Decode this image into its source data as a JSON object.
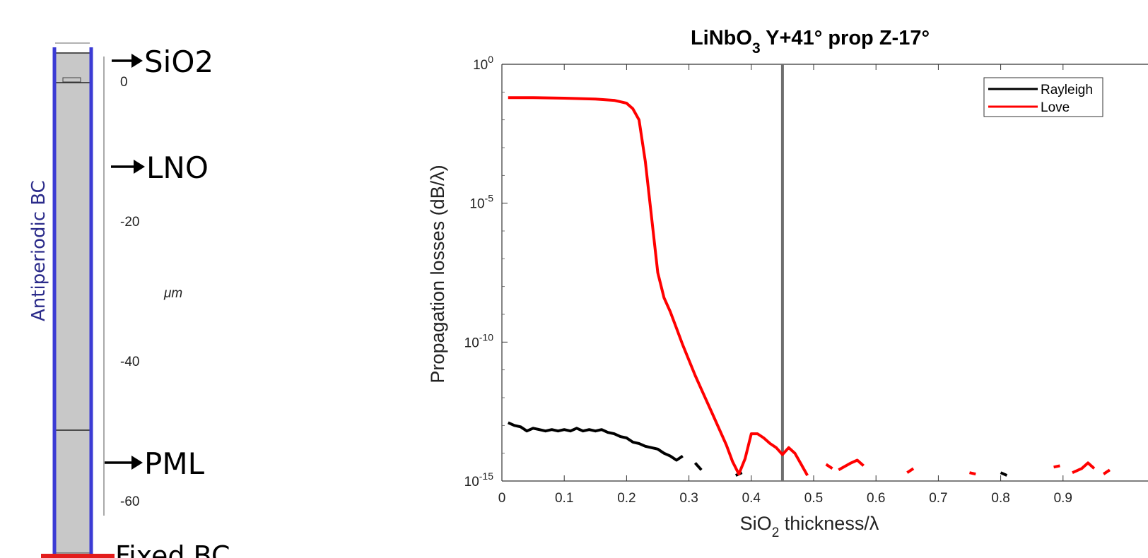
{
  "diagram": {
    "side_label": "Antiperiodic BC",
    "unit": "μm",
    "ticks": [
      "0",
      "-20",
      "-40",
      "-60"
    ],
    "layer_labels": {
      "sio2": "SiO2",
      "lno": "LNO",
      "pml": "PML",
      "fixed_bc": "Fixed BC"
    },
    "colors": {
      "boundary_blue": "#3b3bd4",
      "fixed_red": "#e31c1c",
      "fill_gray": "#c8c8c8"
    }
  },
  "chart_data": {
    "type": "line",
    "title_main": "LiNbO",
    "title_sub": "3",
    "title_rest": " Y+41° prop Z-17°",
    "xlabel_main": "SiO",
    "xlabel_sub": "2",
    "xlabel_rest": " thickness/λ",
    "ylabel": "Propagation losses (dB/λ)",
    "x_ticks": [
      "0",
      "0.1",
      "0.2",
      "0.3",
      "0.4",
      "0.5",
      "0.6",
      "0.7",
      "0.8",
      "0.9"
    ],
    "y_ticks": [
      {
        "base": "10",
        "exp": "0"
      },
      {
        "base": "10",
        "exp": "-5"
      },
      {
        "base": "10",
        "exp": "-10"
      },
      {
        "base": "10",
        "exp": "-15"
      }
    ],
    "xlim": [
      0,
      1.0
    ],
    "ylim_log10": [
      -15,
      0
    ],
    "yscale": "log",
    "vline_x": 0.45,
    "legend_position": "top-right",
    "legend": [
      {
        "name": "Rayleigh",
        "color": "#000000"
      },
      {
        "name": "Love",
        "color": "#ff0000"
      }
    ],
    "series": [
      {
        "name": "Rayleigh",
        "color": "#000000",
        "log10_segments": [
          [
            [
              0.01,
              -12.9
            ],
            [
              0.02,
              -13.0
            ],
            [
              0.03,
              -13.05
            ],
            [
              0.04,
              -13.2
            ],
            [
              0.05,
              -13.1
            ],
            [
              0.06,
              -13.15
            ],
            [
              0.07,
              -13.2
            ],
            [
              0.08,
              -13.15
            ],
            [
              0.09,
              -13.2
            ],
            [
              0.1,
              -13.15
            ],
            [
              0.11,
              -13.2
            ],
            [
              0.12,
              -13.1
            ],
            [
              0.13,
              -13.2
            ],
            [
              0.14,
              -13.15
            ],
            [
              0.15,
              -13.2
            ],
            [
              0.16,
              -13.15
            ],
            [
              0.17,
              -13.25
            ],
            [
              0.18,
              -13.3
            ],
            [
              0.19,
              -13.4
            ],
            [
              0.2,
              -13.45
            ],
            [
              0.21,
              -13.6
            ],
            [
              0.22,
              -13.65
            ],
            [
              0.23,
              -13.75
            ],
            [
              0.24,
              -13.8
            ],
            [
              0.25,
              -13.85
            ],
            [
              0.26,
              -14.0
            ],
            [
              0.27,
              -14.1
            ],
            [
              0.28,
              -14.25
            ],
            [
              0.29,
              -14.1
            ]
          ],
          [
            [
              0.31,
              -14.35
            ],
            [
              0.32,
              -14.6
            ]
          ],
          [
            [
              0.375,
              -14.8
            ],
            [
              0.385,
              -14.7
            ]
          ],
          [
            [
              0.8,
              -14.7
            ],
            [
              0.81,
              -14.8
            ]
          ]
        ]
      },
      {
        "name": "Love",
        "color": "#ff0000",
        "log10_segments": [
          [
            [
              0.01,
              -1.2
            ],
            [
              0.05,
              -1.2
            ],
            [
              0.1,
              -1.22
            ],
            [
              0.15,
              -1.25
            ],
            [
              0.18,
              -1.3
            ],
            [
              0.2,
              -1.4
            ],
            [
              0.21,
              -1.6
            ],
            [
              0.22,
              -2.0
            ],
            [
              0.23,
              -3.5
            ],
            [
              0.24,
              -5.5
            ],
            [
              0.25,
              -7.5
            ],
            [
              0.26,
              -8.4
            ],
            [
              0.27,
              -8.9
            ],
            [
              0.28,
              -9.5
            ],
            [
              0.29,
              -10.1
            ],
            [
              0.3,
              -10.65
            ],
            [
              0.31,
              -11.2
            ],
            [
              0.32,
              -11.7
            ],
            [
              0.33,
              -12.2
            ],
            [
              0.34,
              -12.7
            ],
            [
              0.35,
              -13.2
            ],
            [
              0.36,
              -13.7
            ],
            [
              0.37,
              -14.3
            ],
            [
              0.38,
              -14.75
            ],
            [
              0.39,
              -14.2
            ],
            [
              0.4,
              -13.3
            ],
            [
              0.41,
              -13.3
            ],
            [
              0.42,
              -13.45
            ],
            [
              0.43,
              -13.65
            ],
            [
              0.44,
              -13.8
            ],
            [
              0.45,
              -14.05
            ],
            [
              0.46,
              -13.8
            ],
            [
              0.47,
              -14.0
            ],
            [
              0.48,
              -14.4
            ],
            [
              0.49,
              -14.8
            ]
          ],
          [
            [
              0.52,
              -14.4
            ],
            [
              0.53,
              -14.55
            ]
          ],
          [
            [
              0.54,
              -14.6
            ],
            [
              0.56,
              -14.35
            ],
            [
              0.57,
              -14.25
            ],
            [
              0.58,
              -14.45
            ]
          ],
          [
            [
              0.65,
              -14.7
            ],
            [
              0.66,
              -14.55
            ]
          ],
          [
            [
              0.75,
              -14.7
            ],
            [
              0.76,
              -14.75
            ]
          ],
          [
            [
              0.885,
              -14.5
            ],
            [
              0.895,
              -14.45
            ]
          ],
          [
            [
              0.915,
              -14.7
            ],
            [
              0.93,
              -14.55
            ],
            [
              0.94,
              -14.35
            ],
            [
              0.95,
              -14.55
            ]
          ],
          [
            [
              0.965,
              -14.75
            ],
            [
              0.975,
              -14.6
            ]
          ]
        ]
      }
    ]
  }
}
